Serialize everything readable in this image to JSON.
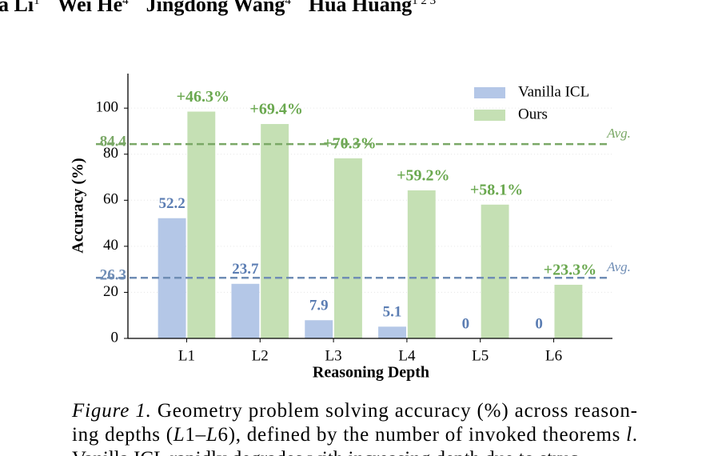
{
  "authors": [
    {
      "name": "a Li",
      "sup": "1"
    },
    {
      "name": "Wei He",
      "sup": "4"
    },
    {
      "name": "Jingdong Wang",
      "sup": "4"
    },
    {
      "name": "Hua Huang",
      "sup": "1 2 3"
    }
  ],
  "chart_data": {
    "type": "bar",
    "xlabel": "Reasoning Depth",
    "ylabel": "Accuracy (%)",
    "categories": [
      "L1",
      "L2",
      "L3",
      "L4",
      "L5",
      "L6"
    ],
    "series": [
      {
        "name": "Vanilla ICL",
        "color": "#b4c7e7",
        "label_color": "#5b7db3",
        "values": [
          52.2,
          23.7,
          7.9,
          5.1,
          0,
          0
        ]
      },
      {
        "name": "Ours",
        "color": "#c5e0b4",
        "label_color": "#6aa84f",
        "values": [
          98.5,
          93.1,
          78.2,
          64.3,
          58.1,
          23.3
        ],
        "annotations": [
          "+46.3%",
          "+69.4%",
          "+70.3%",
          "+59.2%",
          "+58.1%",
          "+23.3%"
        ]
      }
    ],
    "reference_lines": [
      {
        "value": 84.4,
        "label": "Avg.",
        "color": "#7aa866"
      },
      {
        "value": 26.3,
        "label": "Avg.",
        "color": "#6f8db5"
      }
    ],
    "ylim": [
      0,
      115
    ],
    "yticks": [
      0,
      20,
      40,
      60,
      80,
      100
    ],
    "grid": true,
    "legend": "upper right"
  },
  "caption": {
    "label": "Figure 1.",
    "lines": [
      [
        {
          "text": " Geometry problem solving accuracy (%) across reason-",
          "italic": false
        }
      ],
      [
        {
          "text": "ing depths (",
          "italic": false
        },
        {
          "text": "L",
          "italic": true
        },
        {
          "text": "1–",
          "italic": false
        },
        {
          "text": "L",
          "italic": true
        },
        {
          "text": "6), defined by the number of invoked theorems ",
          "italic": false
        },
        {
          "text": "l",
          "italic": true
        },
        {
          "text": ".",
          "italic": false
        }
      ],
      [
        {
          "text": "Vanilla ICL rapidly degrades with increasing depth due to struc-",
          "italic": false
        }
      ]
    ]
  }
}
